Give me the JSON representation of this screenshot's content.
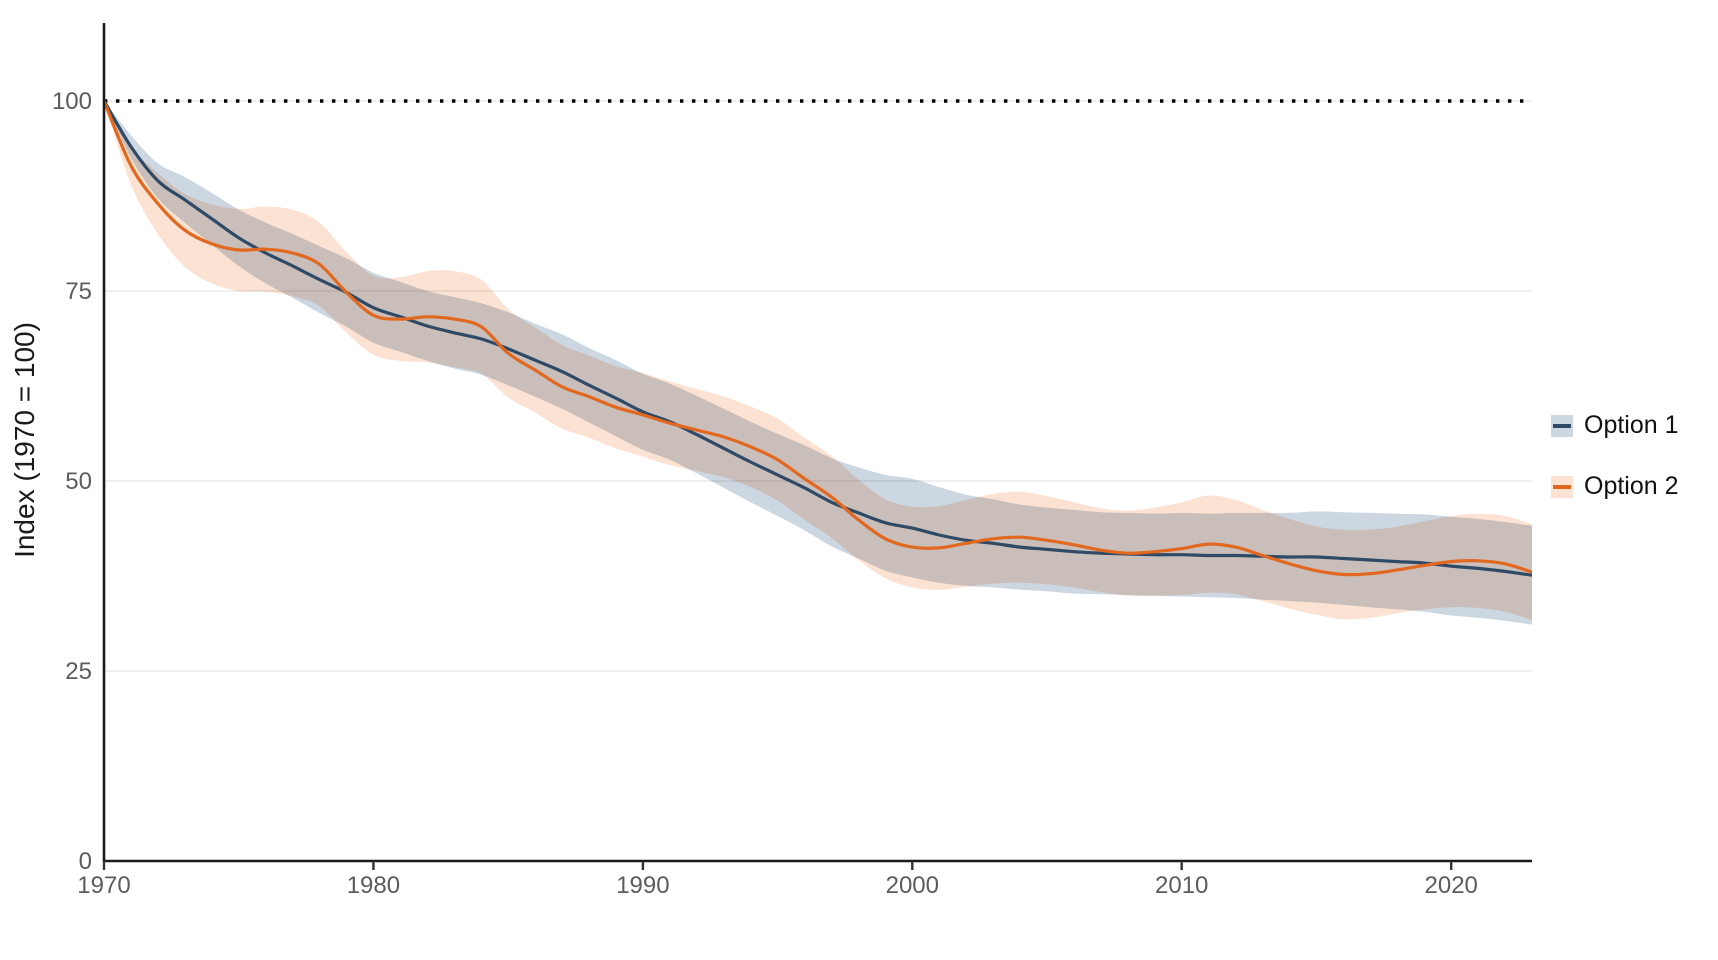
{
  "chart_data": {
    "type": "line",
    "title": "",
    "xlabel": "",
    "ylabel": "Index (1970 = 100)",
    "xlim": [
      1970,
      2023
    ],
    "ylim": [
      0,
      100
    ],
    "x_ticks": [
      1970,
      1980,
      1990,
      2000,
      2010,
      2020
    ],
    "y_ticks": [
      0,
      25,
      50,
      75,
      100
    ],
    "grid": "horizontal",
    "legend_position": "right",
    "reference_line": {
      "y": 100,
      "style": "dotted",
      "color": "#000000"
    },
    "years": [
      1970,
      1971,
      1972,
      1973,
      1974,
      1975,
      1976,
      1977,
      1978,
      1979,
      1980,
      1981,
      1982,
      1983,
      1984,
      1985,
      1986,
      1987,
      1988,
      1989,
      1990,
      1991,
      1992,
      1993,
      1994,
      1995,
      1996,
      1997,
      1998,
      1999,
      2000,
      2001,
      2002,
      2003,
      2004,
      2005,
      2006,
      2007,
      2008,
      2009,
      2010,
      2011,
      2012,
      2013,
      2014,
      2015,
      2016,
      2017,
      2018,
      2019,
      2020,
      2021,
      2022,
      2023
    ],
    "series": [
      {
        "name": "Option 1",
        "color": "#2f4a66",
        "band_color": "#cdd7e1",
        "values": [
          100,
          94,
          89.5,
          87,
          84.5,
          82,
          80,
          78.3,
          76.5,
          74.8,
          72.8,
          71.6,
          70.4,
          69.5,
          68.7,
          67.4,
          65.9,
          64.4,
          62.6,
          60.9,
          59.1,
          57.8,
          56.1,
          54.3,
          52.5,
          50.8,
          49.1,
          47.2,
          45.8,
          44.5,
          43.8,
          42.9,
          42.2,
          41.8,
          41.3,
          41,
          40.7,
          40.5,
          40.4,
          40.3,
          40.3,
          40.2,
          40.2,
          40.1,
          40,
          40,
          39.8,
          39.6,
          39.4,
          39.2,
          38.8,
          38.5,
          38.1,
          37.6
        ],
        "band_halfwidth": [
          0,
          1.5,
          2.3,
          3,
          3.4,
          3.7,
          4,
          4.2,
          4.4,
          4.5,
          4.6,
          4.6,
          4.6,
          4.7,
          4.7,
          4.8,
          4.8,
          4.9,
          4.9,
          5,
          5,
          5,
          5.1,
          5.2,
          5.3,
          5.4,
          5.6,
          5.8,
          6,
          6.3,
          6.5,
          6.3,
          6,
          5.8,
          5.6,
          5.5,
          5.5,
          5.4,
          5.4,
          5.4,
          5.5,
          5.5,
          5.6,
          5.7,
          5.8,
          6,
          6.1,
          6.2,
          6.3,
          6.4,
          6.5,
          6.5,
          6.5,
          6.5
        ]
      },
      {
        "name": "Option 2",
        "color": "#e2671f",
        "band_color": "#fbe2d2",
        "values": [
          100,
          91.5,
          86.5,
          83,
          81.2,
          80.4,
          80.5,
          80,
          78.5,
          74.8,
          71.8,
          71.3,
          71.6,
          71.3,
          70.3,
          66.8,
          64.6,
          62.4,
          61.1,
          59.7,
          58.7,
          57.6,
          56.7,
          55.8,
          54.5,
          52.8,
          50.3,
          47.9,
          44.9,
          42.4,
          41.3,
          41.2,
          41.8,
          42.4,
          42.6,
          42.2,
          41.6,
          40.9,
          40.5,
          40.7,
          41.1,
          41.7,
          41.3,
          40.2,
          39.1,
          38.2,
          37.7,
          37.8,
          38.3,
          38.9,
          39.4,
          39.5,
          39.1,
          38
        ],
        "band_halfwidth": [
          0,
          2.5,
          4,
          4.8,
          5.2,
          5.4,
          5.6,
          5.7,
          5.5,
          5.3,
          5.2,
          5.5,
          6,
          6.3,
          6.2,
          5.8,
          5.6,
          5.5,
          5.4,
          5.4,
          5.5,
          5.5,
          5.4,
          5.3,
          5.3,
          5.4,
          5.4,
          5.4,
          5.3,
          5.2,
          5.3,
          5.5,
          5.7,
          5.9,
          6,
          5.8,
          5.6,
          5.5,
          5.6,
          5.8,
          6.1,
          6.4,
          6.2,
          6,
          5.9,
          5.8,
          5.9,
          5.8,
          5.7,
          5.8,
          6,
          6.2,
          6.3,
          6.3
        ]
      }
    ],
    "style": {
      "axis_color": "#1a1a1a",
      "tick_color": "#333333",
      "gridline_color": "#eaeaea",
      "tick_label_color": "#5c5c5c",
      "line_width": 3.2
    }
  }
}
